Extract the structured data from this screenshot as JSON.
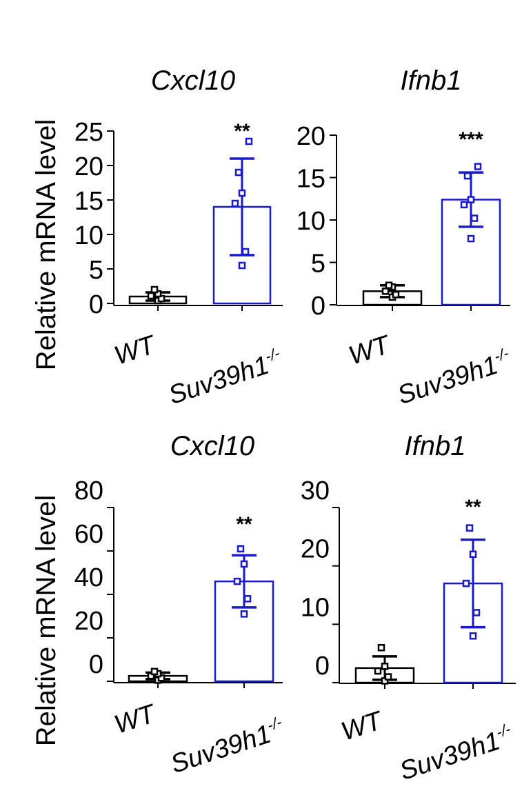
{
  "chart_data": [
    {
      "type": "bar",
      "title": "Cxcl10",
      "ylabel": "Relative mRNA level",
      "categories": [
        "WT",
        "Suv39h1"
      ],
      "category_superscripts": [
        "",
        "-/-"
      ],
      "ylim": [
        0,
        25
      ],
      "yticks": [
        "0",
        "5",
        "10",
        "15",
        "20",
        "25"
      ],
      "grid": false,
      "series": [
        {
          "values": [
            1,
            14
          ],
          "error": [
            0.6,
            7
          ],
          "points": [
            [
              0.4,
              0.7,
              1.1,
              1.4,
              2
            ],
            [
              5.5,
              7.5,
              14.5,
              16,
              19,
              23.5
            ]
          ],
          "colors": [
            "#000000",
            "#1a1acc"
          ]
        }
      ],
      "significance": [
        "",
        "**"
      ]
    },
    {
      "type": "bar",
      "title": "Ifnb1",
      "ylabel": "",
      "categories": [
        "WT",
        "Suv39h1"
      ],
      "category_superscripts": [
        "",
        "-/-"
      ],
      "ylim": [
        0,
        20
      ],
      "yticks": [
        "0",
        "5",
        "10",
        "15",
        "20"
      ],
      "grid": false,
      "series": [
        {
          "values": [
            1.6,
            12.4
          ],
          "error": [
            0.7,
            3.2
          ],
          "points": [
            [
              0.9,
              1.2,
              1.6,
              2.1,
              2.3
            ],
            [
              7.8,
              10.2,
              11.8,
              12.4,
              15.2,
              16.3
            ]
          ],
          "colors": [
            "#000000",
            "#1a1acc"
          ]
        }
      ],
      "significance": [
        "",
        "***"
      ]
    },
    {
      "type": "bar",
      "title": "Cxcl10",
      "ylabel": "Relative mRNA level",
      "categories": [
        "WT",
        "Suv39h1"
      ],
      "category_superscripts": [
        "",
        "-/-"
      ],
      "ylim": [
        0,
        80
      ],
      "yticks": [
        "0",
        "20",
        "40",
        "60",
        "80"
      ],
      "grid": false,
      "series": [
        {
          "values": [
            2.5,
            46
          ],
          "error": [
            1.5,
            12
          ],
          "points": [
            [
              0.5,
              1.5,
              2.5,
              3.5,
              4.5
            ],
            [
              31,
              38,
              46,
              54,
              61
            ]
          ],
          "colors": [
            "#000000",
            "#1a1acc"
          ]
        }
      ],
      "significance": [
        "",
        "**"
      ]
    },
    {
      "type": "bar",
      "title": "Ifnb1",
      "ylabel": "",
      "categories": [
        "WT",
        "Suv39h1"
      ],
      "category_superscripts": [
        "",
        "-/-"
      ],
      "ylim": [
        0,
        30
      ],
      "yticks": [
        "0",
        "10",
        "20",
        "30"
      ],
      "grid": false,
      "series": [
        {
          "values": [
            2.5,
            17
          ],
          "error": [
            2,
            7.5
          ],
          "points": [
            [
              0.3,
              1,
              2,
              2.8,
              6
            ],
            [
              8,
              12,
              17,
              22,
              26.5
            ]
          ],
          "colors": [
            "#000000",
            "#1a1acc"
          ]
        }
      ],
      "significance": [
        "",
        "**"
      ]
    }
  ]
}
